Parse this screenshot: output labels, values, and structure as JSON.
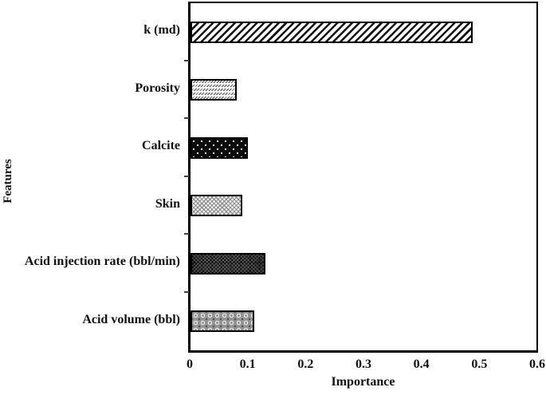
{
  "chart_data": {
    "type": "bar",
    "orientation": "horizontal",
    "title": "",
    "categories": [
      "k (md)",
      "Porosity",
      "Calcite",
      "Skin",
      "Acid injection rate (bbl/min)",
      "Acid volume (bbl)"
    ],
    "values": [
      0.49,
      0.08,
      0.1,
      0.09,
      0.13,
      0.11
    ],
    "patterns": [
      "diagonal-hatch-wide",
      "diagonal-hatch-fine",
      "black-white-dots",
      "light-gray-weave",
      "dark-crosshatch",
      "gray-circle-lattice"
    ],
    "xlabel": "Importance",
    "ylabel": "Features",
    "xlim": [
      0,
      0.6
    ],
    "xticks": [
      {
        "value": 0.0,
        "label": "0"
      },
      {
        "value": 0.1,
        "label": "0.1"
      },
      {
        "value": 0.2,
        "label": "0.2"
      },
      {
        "value": 0.3,
        "label": "0.3"
      },
      {
        "value": 0.4,
        "label": "0.4"
      },
      {
        "value": 0.5,
        "label": "0.5"
      },
      {
        "value": 0.6,
        "label": "0.6"
      }
    ],
    "grid": false,
    "legend": false,
    "bar_border_color": "#000000",
    "frame_color": "#000000",
    "background_color": "#ffffff"
  }
}
